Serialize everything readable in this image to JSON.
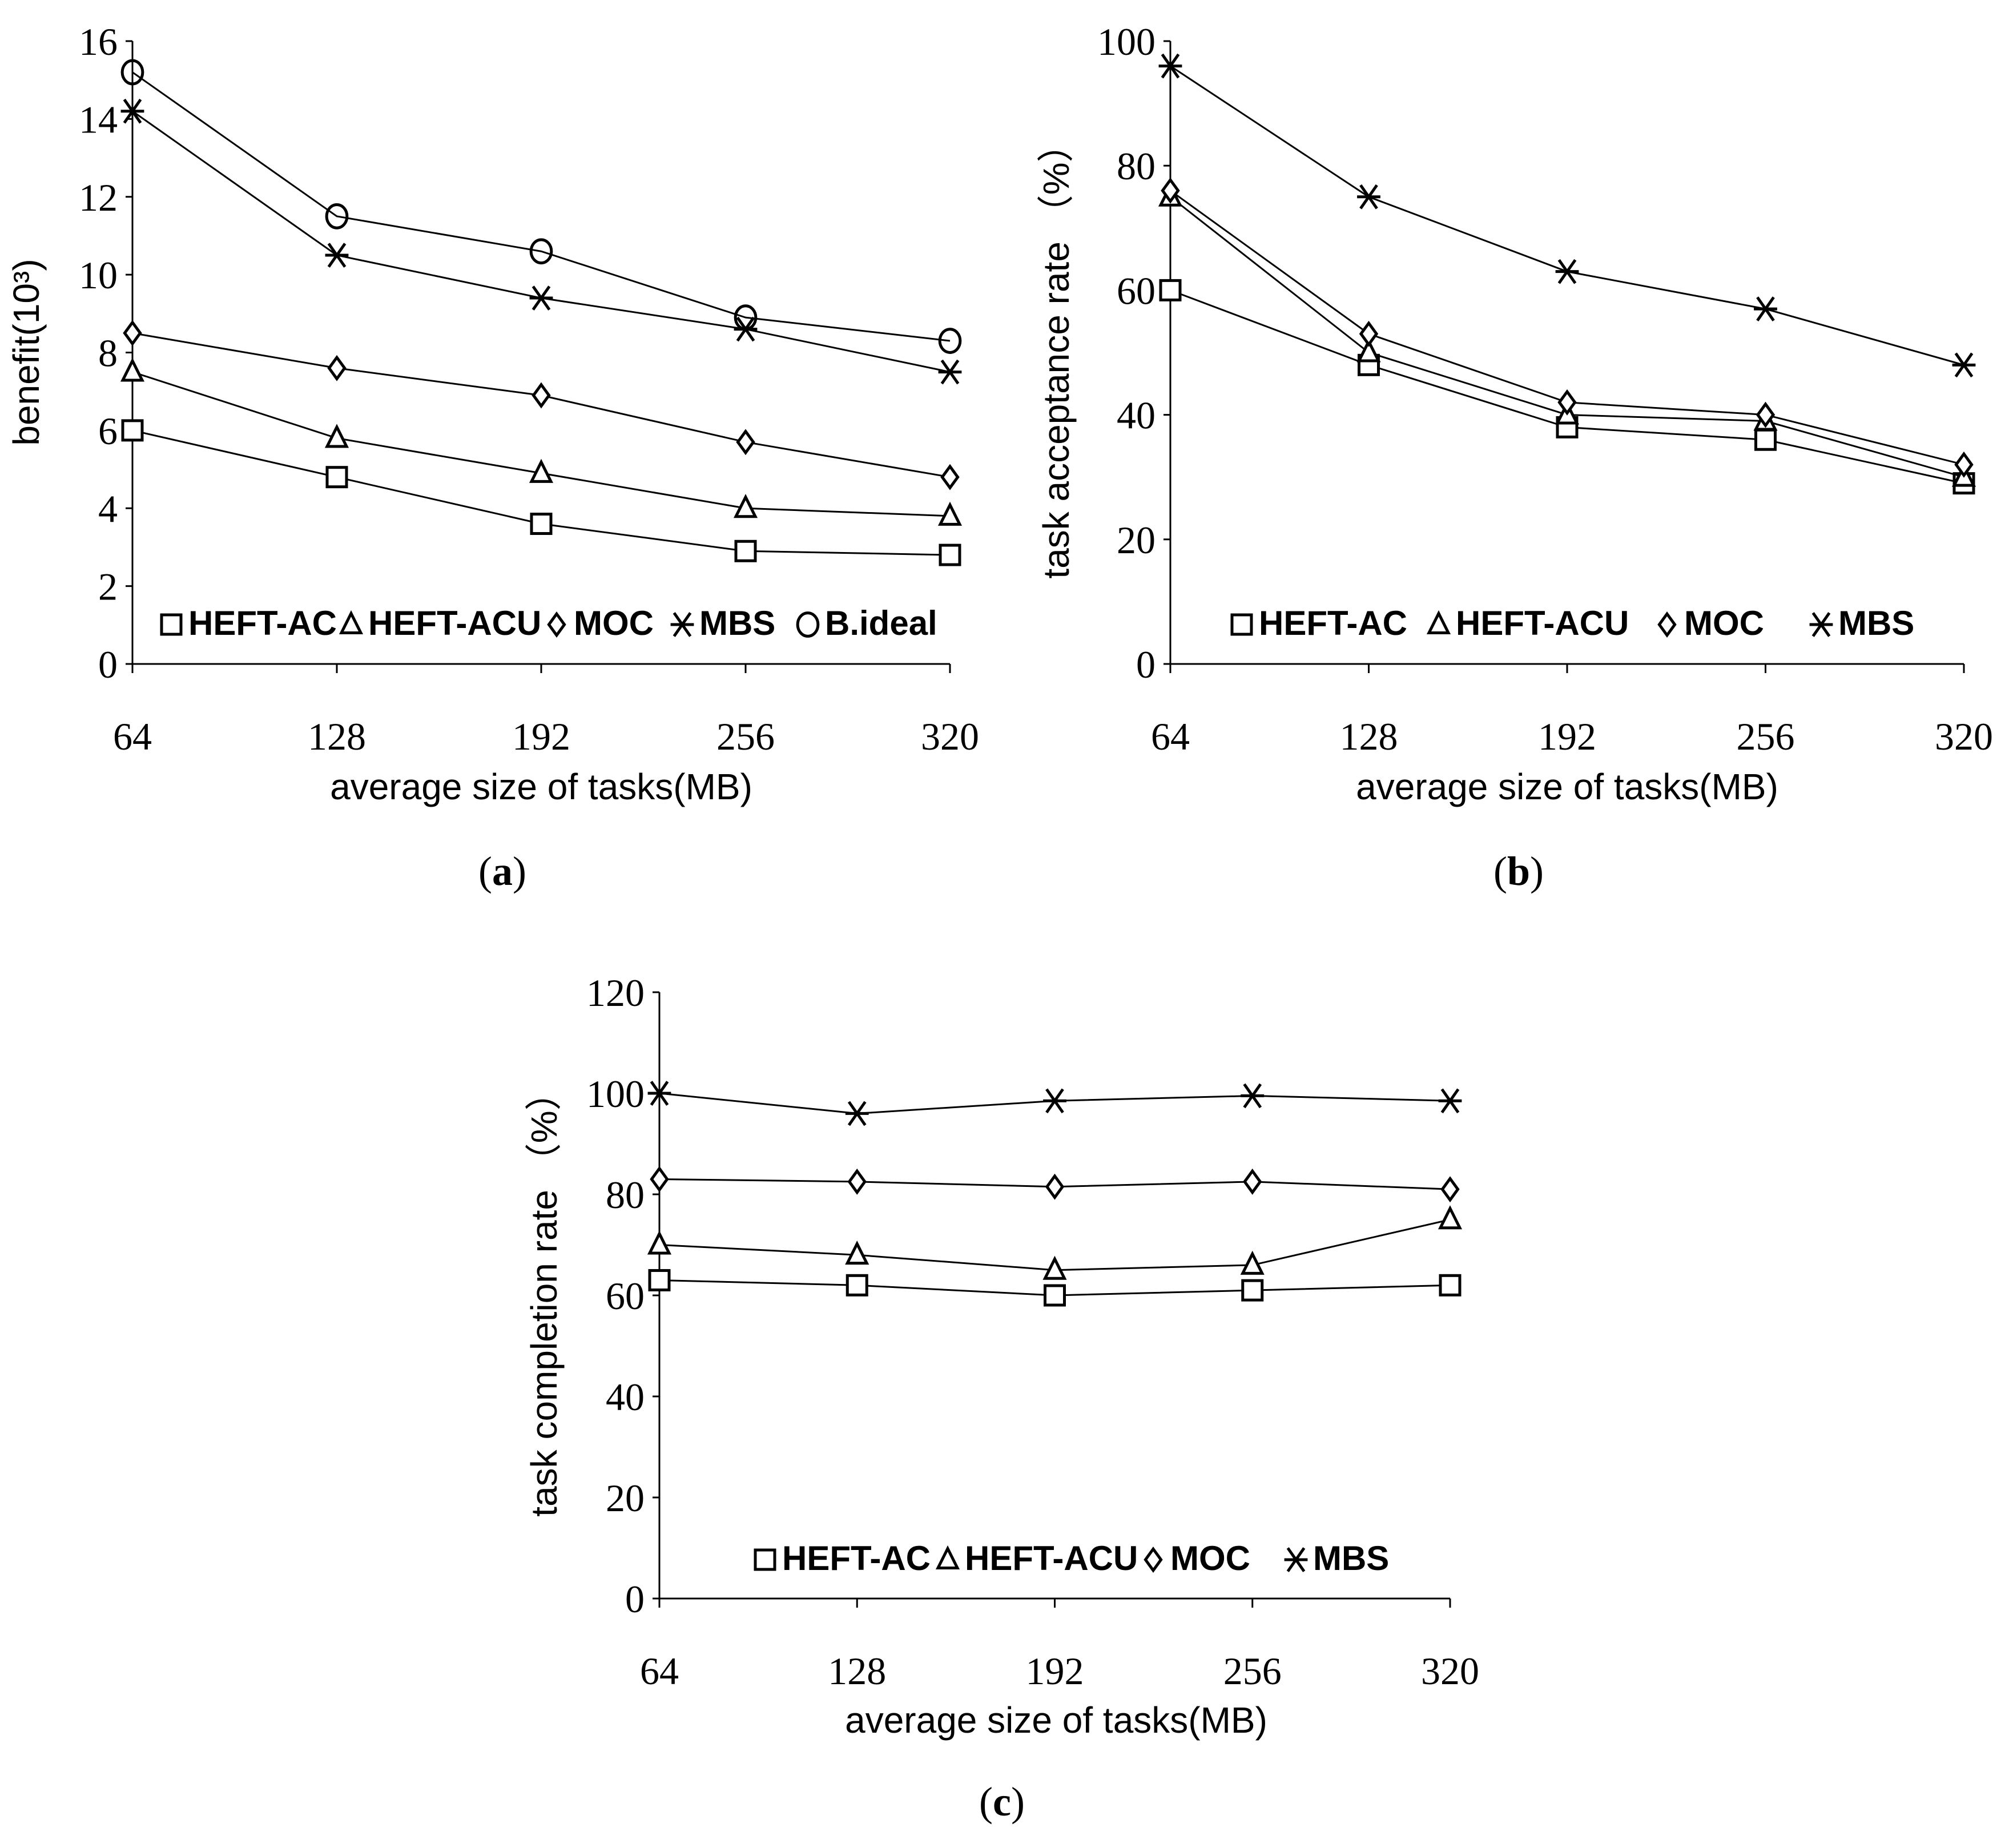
{
  "chart_data": [
    {
      "id": "a",
      "type": "line",
      "caption": "a",
      "xlabel": "average size of tasks(MB)",
      "ylabel": "benefit(10³)",
      "categories": [
        "64",
        "128",
        "192",
        "256",
        "320"
      ],
      "ylim": [
        0,
        16
      ],
      "yticks": [
        0,
        2,
        4,
        6,
        8,
        10,
        12,
        14,
        16
      ],
      "grid": false,
      "legend_position": "bottom",
      "series": [
        {
          "name": "HEFT-AC",
          "marker": "square",
          "values": [
            6.0,
            4.8,
            3.6,
            2.9,
            2.8
          ]
        },
        {
          "name": "HEFT-ACU",
          "marker": "triangle",
          "values": [
            7.5,
            5.8,
            4.9,
            4.0,
            3.8
          ]
        },
        {
          "name": "MOC",
          "marker": "diamond",
          "values": [
            8.5,
            7.6,
            6.9,
            5.7,
            4.8
          ]
        },
        {
          "name": "MBS",
          "marker": "asterisk",
          "values": [
            14.2,
            10.5,
            9.4,
            8.6,
            7.5
          ]
        },
        {
          "name": "B.ideal",
          "marker": "circle",
          "values": [
            15.2,
            11.5,
            10.6,
            8.9,
            8.3
          ]
        }
      ]
    },
    {
      "id": "b",
      "type": "line",
      "caption": "b",
      "xlabel": "average size of tasks(MB)",
      "ylabel": "task acceptance rate （%）",
      "categories": [
        "64",
        "128",
        "192",
        "256",
        "320"
      ],
      "ylim": [
        0,
        100
      ],
      "yticks": [
        0,
        20,
        40,
        60,
        80,
        100
      ],
      "grid": false,
      "legend_position": "bottom",
      "series": [
        {
          "name": "HEFT-AC",
          "marker": "square",
          "values": [
            60,
            48,
            38,
            36,
            29
          ]
        },
        {
          "name": "HEFT-ACU",
          "marker": "triangle",
          "values": [
            75,
            50,
            40,
            39,
            30
          ]
        },
        {
          "name": "MOC",
          "marker": "diamond",
          "values": [
            76,
            53,
            42,
            40,
            32
          ]
        },
        {
          "name": "MBS",
          "marker": "asterisk",
          "values": [
            96,
            75,
            63,
            57,
            48
          ]
        }
      ]
    },
    {
      "id": "c",
      "type": "line",
      "caption": "c",
      "xlabel": "average size of tasks(MB)",
      "ylabel": "task completion rate （%）",
      "categories": [
        "64",
        "128",
        "192",
        "256",
        "320"
      ],
      "ylim": [
        0,
        120
      ],
      "yticks": [
        0,
        20,
        40,
        60,
        80,
        100,
        120
      ],
      "grid": false,
      "legend_position": "bottom",
      "series": [
        {
          "name": "HEFT-AC",
          "marker": "square",
          "values": [
            63,
            62,
            60,
            61,
            62
          ]
        },
        {
          "name": "HEFT-ACU",
          "marker": "triangle",
          "values": [
            70,
            68,
            65,
            66,
            75
          ]
        },
        {
          "name": "MOC",
          "marker": "diamond",
          "values": [
            83,
            82.5,
            81.5,
            82.5,
            81
          ]
        },
        {
          "name": "MBS",
          "marker": "asterisk",
          "values": [
            100,
            96,
            98.5,
            99.5,
            98.5
          ]
        }
      ]
    }
  ],
  "colors": {
    "line": "#000000",
    "background": "#ffffff"
  }
}
